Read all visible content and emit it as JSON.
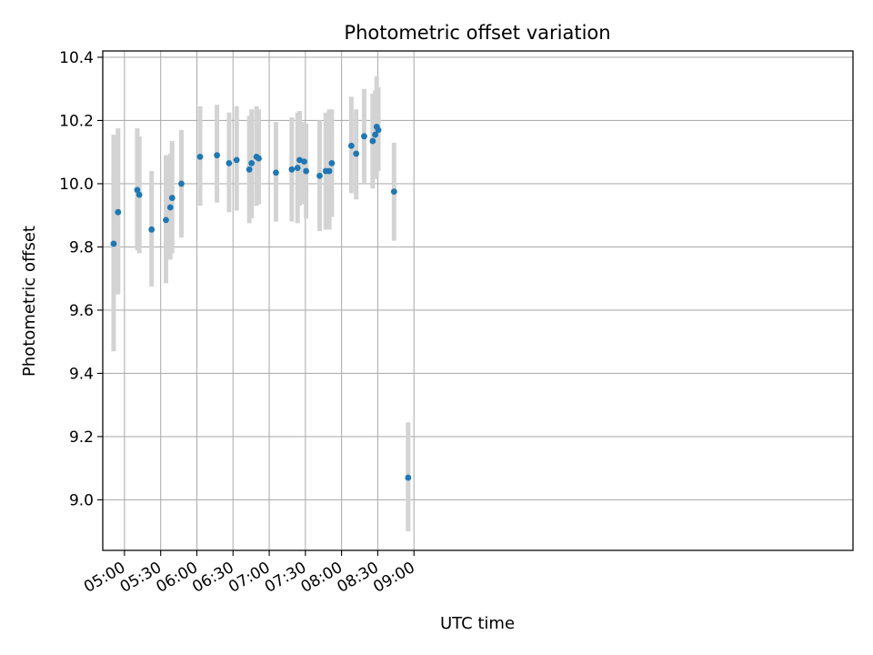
{
  "chart_data": {
    "type": "scatter",
    "title": "Photometric offset variation",
    "xlabel": "UTC time",
    "ylabel": "Photometric offset",
    "x_unit": "minutes since 00:00 UTC",
    "xlim": [
      282,
      904
    ],
    "ylim": [
      8.84,
      10.42
    ],
    "grid": true,
    "x_ticks": [
      {
        "value": 300,
        "label": "05:00"
      },
      {
        "value": 330,
        "label": "05:30"
      },
      {
        "value": 360,
        "label": "06:00"
      },
      {
        "value": 390,
        "label": "06:30"
      },
      {
        "value": 420,
        "label": "07:00"
      },
      {
        "value": 450,
        "label": "07:30"
      },
      {
        "value": 480,
        "label": "08:00"
      },
      {
        "value": 510,
        "label": "08:30"
      },
      {
        "value": 540,
        "label": "09:00"
      }
    ],
    "y_ticks": [
      {
        "value": 9.0,
        "label": "9.0"
      },
      {
        "value": 9.2,
        "label": "9.2"
      },
      {
        "value": 9.4,
        "label": "9.4"
      },
      {
        "value": 9.6,
        "label": "9.6"
      },
      {
        "value": 9.8,
        "label": "9.8"
      },
      {
        "value": 10.0,
        "label": "10.0"
      },
      {
        "value": 10.2,
        "label": "10.2"
      },
      {
        "value": 10.4,
        "label": "10.4"
      }
    ],
    "colors": {
      "point": "#1f77b4",
      "errorbar": "#d3d3d3",
      "grid": "#b0b0b0"
    },
    "series": [
      {
        "points": [
          {
            "x": 291.0,
            "y": 9.81,
            "ylo": 9.47,
            "yhi": 10.155
          },
          {
            "x": 294.7,
            "y": 9.91,
            "ylo": 9.65,
            "yhi": 10.175
          },
          {
            "x": 310.6,
            "y": 9.98,
            "ylo": 9.79,
            "yhi": 10.175
          },
          {
            "x": 312.3,
            "y": 9.965,
            "ylo": 9.78,
            "yhi": 10.15
          },
          {
            "x": 322.5,
            "y": 9.855,
            "ylo": 9.675,
            "yhi": 10.04
          },
          {
            "x": 334.4,
            "y": 9.885,
            "ylo": 9.685,
            "yhi": 10.09
          },
          {
            "x": 338.0,
            "y": 9.925,
            "ylo": 9.76,
            "yhi": 10.095
          },
          {
            "x": 339.5,
            "y": 9.955,
            "ylo": 9.78,
            "yhi": 10.135
          },
          {
            "x": 347.2,
            "y": 10.0,
            "ylo": 9.83,
            "yhi": 10.17
          },
          {
            "x": 362.7,
            "y": 10.085,
            "ylo": 9.93,
            "yhi": 10.245
          },
          {
            "x": 376.7,
            "y": 10.09,
            "ylo": 9.94,
            "yhi": 10.25
          },
          {
            "x": 386.7,
            "y": 10.065,
            "ylo": 9.91,
            "yhi": 10.225
          },
          {
            "x": 393.0,
            "y": 10.075,
            "ylo": 9.915,
            "yhi": 10.245
          },
          {
            "x": 403.5,
            "y": 10.045,
            "ylo": 9.875,
            "yhi": 10.215
          },
          {
            "x": 405.4,
            "y": 10.065,
            "ylo": 9.89,
            "yhi": 10.235
          },
          {
            "x": 409.5,
            "y": 10.085,
            "ylo": 9.93,
            "yhi": 10.245
          },
          {
            "x": 411.3,
            "y": 10.08,
            "ylo": 9.935,
            "yhi": 10.235
          },
          {
            "x": 425.6,
            "y": 10.035,
            "ylo": 9.88,
            "yhi": 10.195
          },
          {
            "x": 438.7,
            "y": 10.045,
            "ylo": 9.88,
            "yhi": 10.21
          },
          {
            "x": 443.5,
            "y": 10.05,
            "ylo": 9.875,
            "yhi": 10.225
          },
          {
            "x": 445.2,
            "y": 10.075,
            "ylo": 9.93,
            "yhi": 10.23
          },
          {
            "x": 449.0,
            "y": 10.07,
            "ylo": 9.935,
            "yhi": 10.195
          },
          {
            "x": 450.6,
            "y": 10.04,
            "ylo": 9.89,
            "yhi": 10.19
          },
          {
            "x": 461.8,
            "y": 10.025,
            "ylo": 9.85,
            "yhi": 10.2
          },
          {
            "x": 466.9,
            "y": 10.04,
            "ylo": 9.855,
            "yhi": 10.225
          },
          {
            "x": 469.8,
            "y": 10.04,
            "ylo": 9.855,
            "yhi": 10.235
          },
          {
            "x": 471.9,
            "y": 10.065,
            "ylo": 9.895,
            "yhi": 10.235
          },
          {
            "x": 488.1,
            "y": 10.12,
            "ylo": 9.97,
            "yhi": 10.275
          },
          {
            "x": 492.1,
            "y": 10.095,
            "ylo": 9.95,
            "yhi": 10.235
          },
          {
            "x": 498.7,
            "y": 10.15,
            "ylo": 10.0,
            "yhi": 10.3
          },
          {
            "x": 505.8,
            "y": 10.135,
            "ylo": 9.985,
            "yhi": 10.285
          },
          {
            "x": 507.9,
            "y": 10.155,
            "ylo": 10.015,
            "yhi": 10.295
          },
          {
            "x": 509.1,
            "y": 10.18,
            "ylo": 10.02,
            "yhi": 10.34
          },
          {
            "x": 510.5,
            "y": 10.17,
            "ylo": 10.04,
            "yhi": 10.305
          },
          {
            "x": 523.5,
            "y": 9.975,
            "ylo": 9.82,
            "yhi": 10.13
          },
          {
            "x": 535.2,
            "y": 9.07,
            "ylo": 8.9,
            "yhi": 9.245
          }
        ]
      }
    ]
  }
}
